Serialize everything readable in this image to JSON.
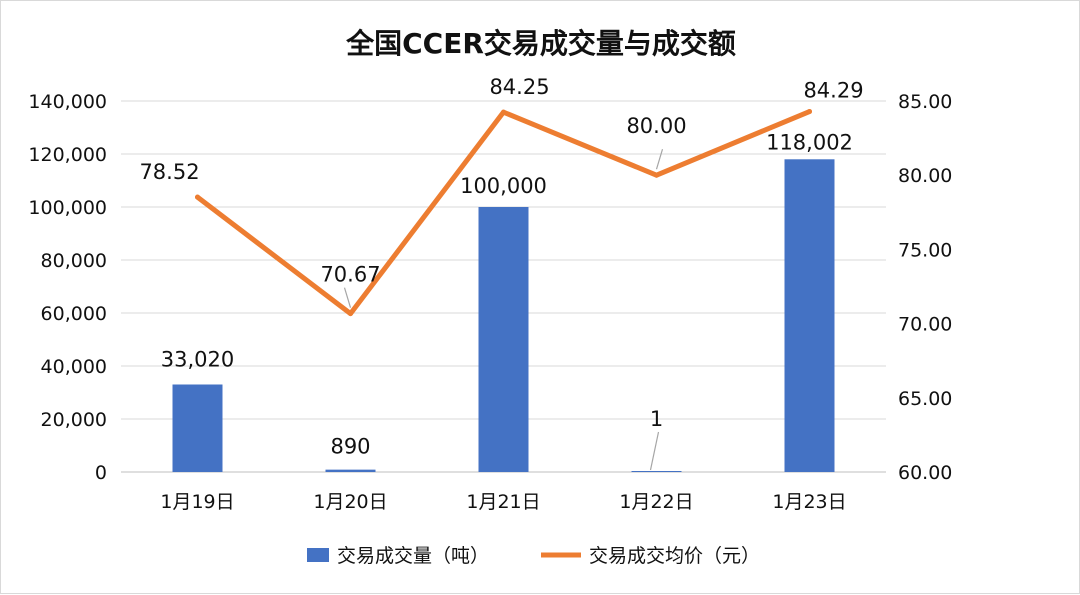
{
  "chart_data": {
    "type": "bar",
    "title": "全国CCER交易成交量与成交额",
    "categories": [
      "1月19日",
      "1月20日",
      "1月21日",
      "1月22日",
      "1月23日"
    ],
    "series": [
      {
        "name": "交易成交量（吨）",
        "type": "bar",
        "axis": "left",
        "values": [
          33020,
          890,
          100000,
          1,
          118002
        ],
        "labels": [
          "33,020",
          "890",
          "100,000",
          "1",
          "118,002"
        ],
        "color": "#4472C4"
      },
      {
        "name": "交易成交均价（元）",
        "type": "line",
        "axis": "right",
        "values": [
          78.52,
          70.67,
          84.25,
          80.0,
          84.29
        ],
        "labels": [
          "78.52",
          "70.67",
          "84.25",
          "80.00",
          "84.29"
        ],
        "color": "#ED7D31"
      }
    ],
    "y_left": {
      "min": 0,
      "max": 140000,
      "step": 20000,
      "ticks": [
        "0",
        "20,000",
        "40,000",
        "60,000",
        "80,000",
        "100,000",
        "120,000",
        "140,000"
      ]
    },
    "y_right": {
      "min": 60,
      "max": 85,
      "step": 5,
      "ticks": [
        "60.00",
        "65.00",
        "70.00",
        "75.00",
        "80.00",
        "85.00"
      ]
    },
    "grid": true,
    "legend": "bottom"
  }
}
